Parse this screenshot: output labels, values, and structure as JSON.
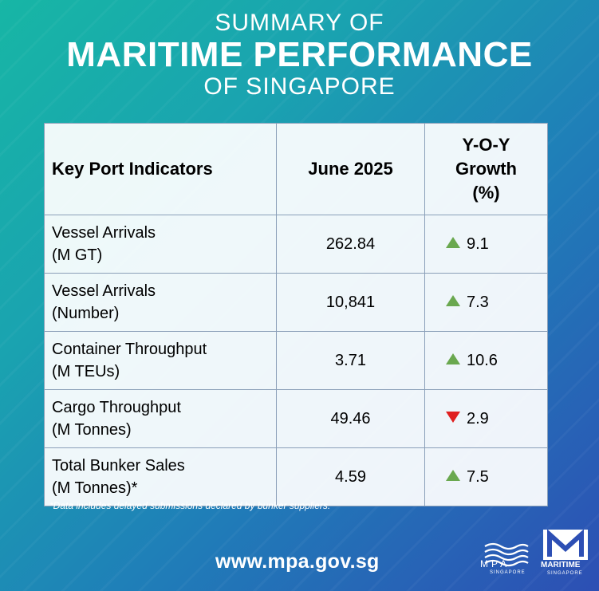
{
  "title": {
    "line1": "SUMMARY OF",
    "line2": "MARITIME PERFORMANCE",
    "line3": "OF SINGAPORE"
  },
  "table": {
    "headers": {
      "indicator": "Key Port Indicators",
      "period": "June 2025",
      "growth_line1": "Y-O-Y",
      "growth_line2": "Growth",
      "growth_line3": "(%)"
    },
    "rows": [
      {
        "name_line1": "Vessel Arrivals",
        "name_line2": "(M GT)",
        "value": "262.84",
        "growth": "9.1",
        "direction": "up"
      },
      {
        "name_line1": "Vessel Arrivals",
        "name_line2": "(Number)",
        "value": "10,841",
        "growth": "7.3",
        "direction": "up"
      },
      {
        "name_line1": "Container Throughput",
        "name_line2": "(M TEUs)",
        "value": "3.71",
        "growth": "10.6",
        "direction": "up"
      },
      {
        "name_line1": "Cargo Throughput",
        "name_line2": "(M Tonnes)",
        "value": "49.46",
        "growth": "2.9",
        "direction": "down"
      },
      {
        "name_line1": "Total Bunker Sales",
        "name_line2": "(M Tonnes)*",
        "value": "4.59",
        "growth": "7.5",
        "direction": "up"
      }
    ],
    "colors": {
      "up": "#6aa84f",
      "down": "#e01f1f"
    }
  },
  "footnote": "*Data includes delayed submissions declared by bunker suppliers.",
  "website": "www.mpa.gov.sg",
  "logos": {
    "mpa_text": "MPA",
    "mpa_sub": "SINGAPORE",
    "ms_text": "MARITIME",
    "ms_sub": "SINGAPORE"
  }
}
